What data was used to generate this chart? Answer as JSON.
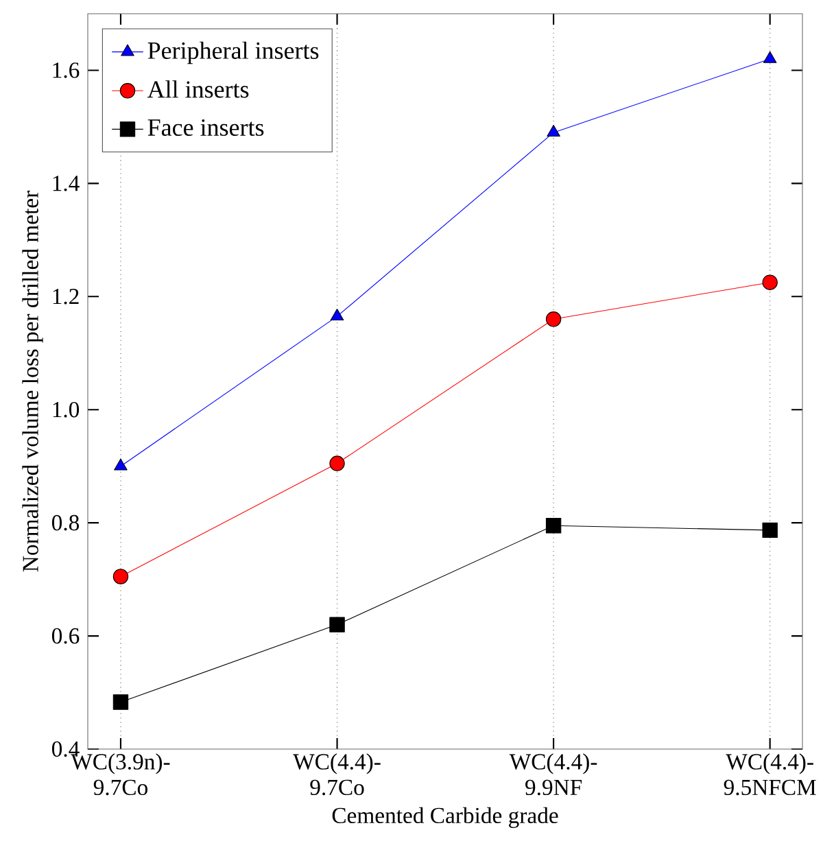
{
  "chart_data": {
    "type": "line",
    "xlabel": "Cemented Carbide grade",
    "ylabel": "Normalized volume loss per drilled meter",
    "categories": [
      "WC(3.9n)-9.7Co",
      "WC(4.4)-9.7Co",
      "WC(4.4)-9.9NF",
      "WC(4.4)-9.5NFCM"
    ],
    "series": [
      {
        "name": "Peripheral inserts",
        "color": "#0000ff",
        "marker": "triangle",
        "values": [
          0.9,
          1.165,
          1.49,
          1.62
        ]
      },
      {
        "name": "All inserts",
        "color": "#ff0000",
        "marker": "circle",
        "values": [
          0.705,
          0.905,
          1.16,
          1.225
        ]
      },
      {
        "name": "Face inserts",
        "color": "#000000",
        "marker": "square",
        "values": [
          0.483,
          0.62,
          0.795,
          0.787
        ]
      }
    ],
    "ylim": [
      0.4,
      1.7
    ],
    "yticks": [
      0.4,
      0.6,
      0.8,
      {
        "value": 1.0,
        "label": "1.0"
      },
      1.2,
      1.4,
      1.6
    ],
    "grid": "x",
    "legend": "top left",
    "line_style": "solid"
  }
}
